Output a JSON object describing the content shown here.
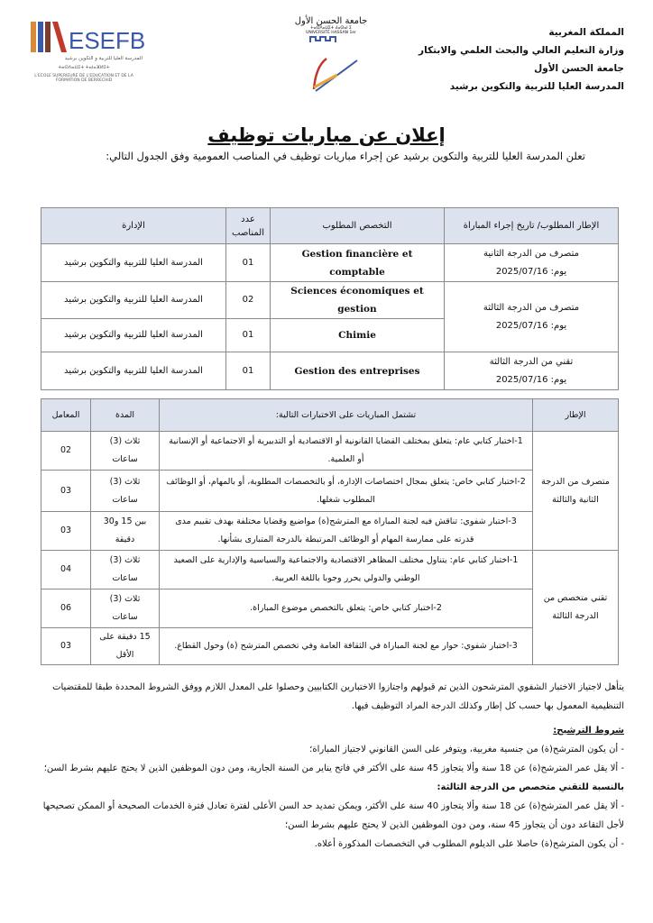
{
  "header": {
    "right_lines": [
      "المملكة المغربية",
      "وزارة التعليم العالي والبحث العلمي والابتكار",
      "جامعة الحسن الأول",
      "المدرسة العليا للتربية والتكوين برشيد"
    ],
    "university_logo": {
      "arabic": "جامعة الحسن الأول",
      "tifinagh": "ⵜⴰⵙⴷⴰⵡⵉⵜ ⵃⴰⵙⴰⵏ ⵉ",
      "french": "UNIVERSITÉ HASSAN 1er"
    },
    "school_logo": {
      "acronym": "ESEFB",
      "arabic": "المدرسة العليا للتربية و التكوين برشيد",
      "tifinagh": "ⵜⴰⵙⴷⴰⵡⵉⵜ ⵜⴰⵏⴰⴼⵍⵉⵜ",
      "french": "L'ECOLE SUPERIEURE DE L'EDUCATION ET DE LA FORMATION DE BERRECHID"
    }
  },
  "title": "إعلان عن مباريات توظيف",
  "intro": "تعلن المدرسة العليا للتربية والتكوين برشيد عن إجراء مباريات توظيف في المناصب العمومية وفق الجدول التالي:",
  "table1": {
    "headers": [
      "الإطار المطلوب/ تاريخ إجراء المباراة",
      "التخصص المطلوب",
      "عدد المناصب",
      "الإدارة"
    ],
    "groups": [
      {
        "grade": "متصرف من الدرجة الثانية",
        "date": "يوم: 2025/07/16",
        "rows": [
          {
            "specialty": "Gestion financière et comptable",
            "count": "01",
            "admin": "المدرسة العليا للتربية والتكوين برشيد"
          }
        ]
      },
      {
        "grade": "متصرف من الدرجة الثالثة",
        "date": "يوم: 2025/07/16",
        "rows": [
          {
            "specialty": "Sciences économiques et gestion",
            "count": "02",
            "admin": "المدرسة العليا للتربية والتكوين برشيد"
          },
          {
            "specialty": "Chimie",
            "count": "01",
            "admin": "المدرسة العليا للتربية والتكوين برشيد"
          }
        ]
      },
      {
        "grade": "تقني من الدرجة الثالثة",
        "date": "يوم: 2025/07/16",
        "rows": [
          {
            "specialty": "Gestion des entreprises",
            "count": "01",
            "admin": "المدرسة العليا للتربية والتكوين برشيد"
          }
        ]
      }
    ]
  },
  "table2": {
    "headers": [
      "الإطار",
      "تشتمل المباريات على الاختبارات التالية:",
      "المدة",
      "المعامل"
    ],
    "groups": [
      {
        "grade": "متصرف من الدرجة الثانية والثالثة",
        "rows": [
          {
            "test": "1-اختبار كتابي عام: يتعلق بمختلف القضايا القانونية أو الاقتصادية أو التدبيرية أو الاجتماعية أو الإنسانية أو العلمية.",
            "duration": "ثلاث (3) ساعات",
            "coef": "02"
          },
          {
            "test": "2-اختبار كتابي خاص: يتعلق بمجال اختصاصات الإدارة، أو بالتخصصات المطلوبة، أو بالمهام، أو الوظائف المطلوب شغلها.",
            "duration": "ثلاث (3) ساعات",
            "coef": "03"
          },
          {
            "test": "3-اختبار شفوي: تناقش فيه لجنة المباراة مع المترشح(ة) مواضيع وقضايا مختلفة بهدف تقييم مدى قدرته على ممارسة المهام أو الوظائف المرتبطة بالدرجة المتبارى بشأنها.",
            "duration": "بين 15 و30 دقيقة",
            "coef": "03"
          }
        ]
      },
      {
        "grade": "تقني متخصص من الدرجة الثالثة",
        "rows": [
          {
            "test": "1-اختبار كتابي عام: يتناول مختلف المظاهر الاقتصادية والاجتماعية والسياسية والإدارية على الصعيد الوطني والدولي يحرر وجوبا باللغة العربية.",
            "duration": "ثلاث (3) ساعات",
            "coef": "04"
          },
          {
            "test": "2-اختبار كتابي خاص: يتعلق بالتخصص موضوع المباراة.",
            "duration": "ثلاث (3) ساعات",
            "coef": "06"
          },
          {
            "test": "3-اختبار شفوي: حوار مع لجنة المباراة في الثقافة العامة وفي تخصص المترشح (ة) وحول القطاع.",
            "duration": "15 دقيقة على الأقل",
            "coef": "03"
          }
        ]
      }
    ]
  },
  "oral_note": "يتأهل لاجتياز الاختبار الشفوي المترشحون الذين تم قبولهم واجتازوا الاختبارين الكتابيين وحصلوا على المعدل اللازم ووفق الشروط المحددة طبقا للمقتضيات التنظيمية المعمول بها حسب كل إطار وكذلك الدرجة المراد التوظيف فيها.",
  "conditions": {
    "heading": "شروط الترشيح:",
    "items": [
      "- أن يكون المترشح(ة) من جنسية مغربية، ويتوفر على السن القانوني لاجتياز المباراة؛",
      "- ألا يقل عمر المترشح(ة) عن 18 سنة وألا يتجاوز 45 سنة على الأكثر في فاتح يناير من السنة الجارية، ومن دون الموظفين الذين لا يحتج عليهم بشرط السن؛"
    ],
    "subheading": "بالنسبة للتقني متخصص من الدرجة الثالثة:",
    "sub_items": [
      "- ألا يقل عمر المترشح(ة) عن 18 سنة وألا يتجاوز 40 سنة على الأكثر، ويمكن تمديد حد السن الأعلى لفترة تعادل فترة الخدمات الصحيحة أو الممكن تصحيحها لأجل التقاعد دون أن يتجاوز 45 سنة، ومن دون الموظفين الذين لا يحتج عليهم بشرط السن؛",
      "- أن يكون المترشح(ة) حاصلا على الديلوم المطلوب في التخصصات المذكورة أعلاه."
    ]
  },
  "colors": {
    "table_header": "#dde3ee",
    "border": "#8a8a8a",
    "logo_orange": "#d9893a",
    "logo_blue": "#3c59a8"
  }
}
